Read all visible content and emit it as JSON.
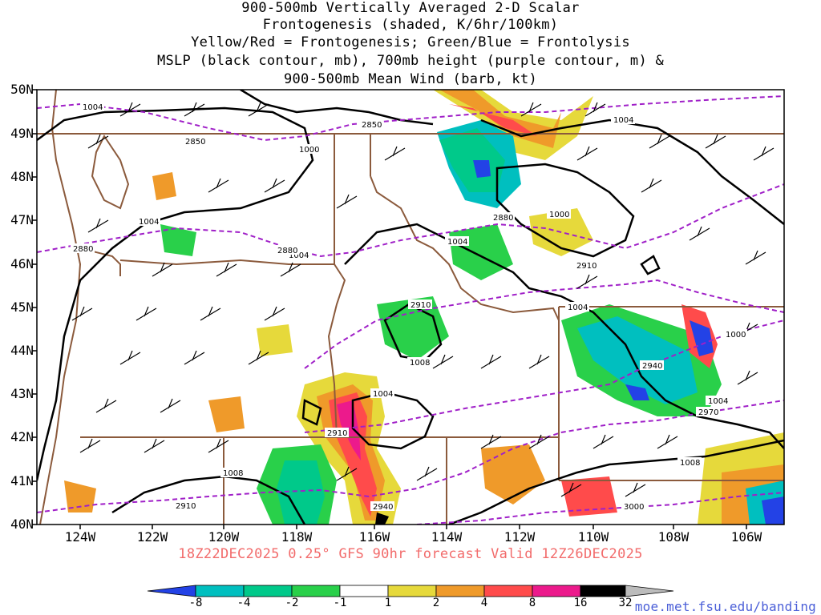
{
  "title_lines": [
    "900-500mb Vertically Averaged 2-D Scalar",
    "Frontogenesis (shaded, K/6hr/100km)",
    "Yellow/Red = Frontogenesis;  Green/Blue = Frontolysis",
    "MSLP (black contour, mb), 700mb height (purple contour, m) &",
    "900-500mb Mean Wind (barb, kt)"
  ],
  "lat_labels": [
    "50N",
    "49N",
    "48N",
    "47N",
    "46N",
    "45N",
    "44N",
    "43N",
    "42N",
    "41N",
    "40N"
  ],
  "lon_labels": [
    "124W",
    "122W",
    "120W",
    "118W",
    "116W",
    "114W",
    "112W",
    "110W",
    "108W",
    "106W"
  ],
  "caption": "18Z22DEC2025 0.25° GFS 90hr forecast Valid 12Z26DEC2025",
  "colorbar": {
    "labels": [
      "-8",
      "-4",
      "-2",
      "-1",
      "1",
      "2",
      "4",
      "8",
      "16",
      "32"
    ],
    "colors": [
      "#2342e6",
      "#00bfbf",
      "#00c98a",
      "#29d04a",
      "#ffffff",
      "#e6d93b",
      "#ef9a2a",
      "#ff4b4b",
      "#ec1a8c",
      "#000000",
      "#bcbcbc"
    ]
  },
  "pressure_labels": [
    "1004",
    "1000",
    "1004",
    "1004",
    "1004",
    "1000",
    "1004",
    "1008",
    "1004",
    "1004",
    "1000",
    "1004",
    "1008",
    "1008"
  ],
  "height_labels": [
    "2850",
    "2850",
    "2880",
    "2880",
    "2880",
    "2910",
    "2910",
    "2910",
    "2940",
    "2970",
    "2910",
    "2940",
    "3000"
  ],
  "colors": {
    "mslp": "#000000",
    "height700": "#a020c8",
    "borders": "#8b5a3c",
    "caption": "#f26b6b",
    "credit": "#4b5fd8"
  },
  "credit": "moe.met.fsu.edu/banding"
}
